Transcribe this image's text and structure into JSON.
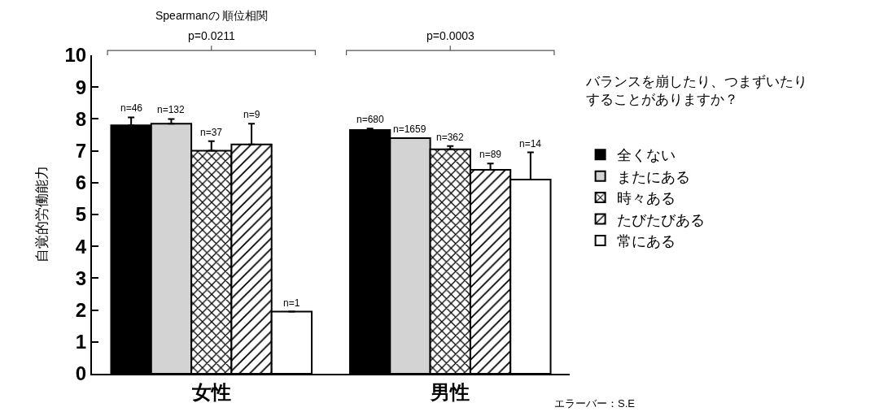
{
  "chart_data": {
    "type": "bar",
    "ylabel": "自覚的労働能力",
    "legend_title": "バランスを崩したり、つまずいたりすることがありますか？",
    "categories": [
      "女性",
      "男性"
    ],
    "series": [
      {
        "name": "全くない",
        "color": "#000000",
        "values": [
          7.8,
          7.65
        ],
        "errors": [
          [
            7.8,
            8.05
          ],
          [
            7.65,
            7.7
          ]
        ]
      },
      {
        "name": "またにある",
        "color": "#d3d3d3",
        "values": [
          7.85,
          7.4
        ],
        "errors": [
          [
            7.85,
            8.0
          ],
          null
        ]
      },
      {
        "name": "時々ある",
        "color": "#000000",
        "values": [
          7.0,
          7.05
        ],
        "errors": [
          [
            7.0,
            7.3
          ],
          [
            7.05,
            7.15
          ]
        ]
      },
      {
        "name": "たびたびある",
        "color": "#000000",
        "values": [
          7.2,
          6.4
        ],
        "errors": [
          [
            7.2,
            7.85
          ],
          [
            6.4,
            6.6
          ]
        ]
      },
      {
        "name": "常にある",
        "color": "#ffffff",
        "values": [
          1.95,
          6.1
        ],
        "errors": [
          null,
          [
            6.1,
            6.95
          ]
        ]
      }
    ],
    "ylim": [
      0,
      10
    ],
    "yticks": [
      0,
      1,
      2,
      3,
      4,
      5,
      6,
      7,
      8,
      9,
      10
    ],
    "legend": "right",
    "annotations": [
      "Spearmanの 順位相関",
      "p=0.0211",
      "p=0.0003",
      "n=46",
      "n=132",
      "n=37",
      "n=9",
      "n=1",
      "n=680",
      "n=1659",
      "n=362",
      "n=89",
      "n=14",
      "エラーバー：S.E"
    ]
  }
}
